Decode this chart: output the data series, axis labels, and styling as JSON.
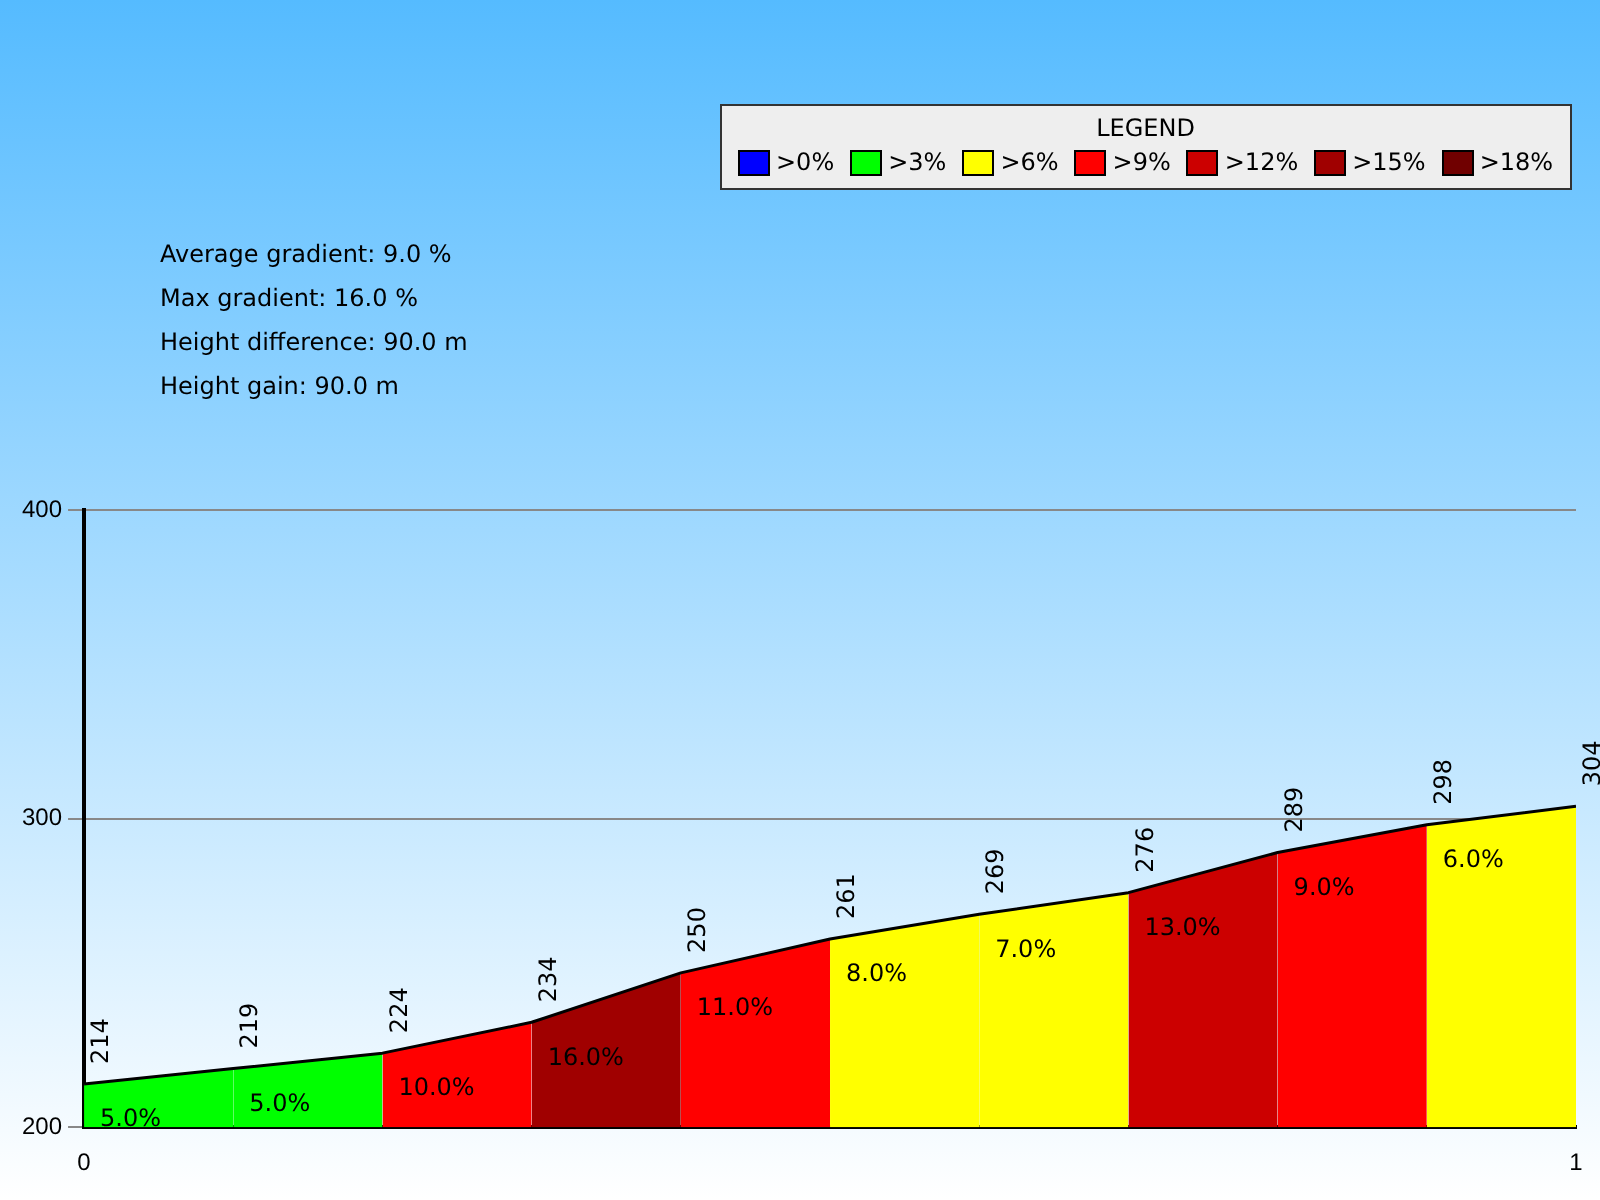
{
  "chart_data": [
    {
      "type": "area",
      "x": [
        0,
        0.1,
        0.2,
        0.3,
        0.4,
        0.5,
        0.6,
        0.7,
        0.8,
        0.9,
        1
      ],
      "series": [
        {
          "type": "line",
          "color": "#000000",
          "values": [
            214,
            219,
            224,
            234,
            250,
            261,
            269,
            276,
            289,
            298,
            304
          ],
          "value_labels": [
            "214",
            "219",
            "224",
            "234",
            "250",
            "261",
            "269",
            "276",
            "289",
            "298",
            "304"
          ]
        },
        {
          "color": "#00ff00",
          "x": [
            0,
            0.1
          ],
          "values": [
            214,
            219
          ]
        },
        {
          "color": "#00ff00",
          "x": [
            0.1,
            0.2
          ],
          "values": [
            219,
            224
          ]
        },
        {
          "color": "#ff0000",
          "x": [
            0.2,
            0.3
          ],
          "values": [
            224,
            234
          ]
        },
        {
          "color": "#a00000",
          "x": [
            0.3,
            0.4
          ],
          "values": [
            234,
            250
          ]
        },
        {
          "color": "#ff0000",
          "x": [
            0.4,
            0.5
          ],
          "values": [
            250,
            261
          ]
        },
        {
          "color": "#ffff00",
          "x": [
            0.5,
            0.6
          ],
          "values": [
            261,
            269
          ]
        },
        {
          "color": "#ffff00",
          "x": [
            0.6,
            0.7
          ],
          "values": [
            269,
            276
          ]
        },
        {
          "color": "#cc0000",
          "x": [
            0.7,
            0.8
          ],
          "values": [
            276,
            289
          ]
        },
        {
          "color": "#ff0000",
          "x": [
            0.8,
            0.9
          ],
          "values": [
            289,
            298
          ]
        },
        {
          "color": "#ffff00",
          "x": [
            0.9,
            1
          ],
          "values": [
            298,
            304
          ]
        }
      ],
      "xlim": [
        0,
        1
      ],
      "xticks": [
        0,
        1
      ],
      "ylim": [
        200,
        400
      ],
      "yticks": [
        200,
        300,
        400
      ],
      "grid": "y",
      "annotations": [
        "Average gradient: 9.0 %",
        "Max gradient: 16.0 %",
        "Height difference: 90.0 m",
        "Height gain: 90.0 m",
        {
          "text": "5.0%",
          "x": 0,
          "y": 214
        },
        {
          "text": "5.0%",
          "x": 0.1,
          "y": 219
        },
        {
          "text": "10.0%",
          "x": 0.2,
          "y": 224
        },
        {
          "text": "16.0%",
          "x": 0.3,
          "y": 234
        },
        {
          "text": "11.0%",
          "x": 0.4,
          "y": 250
        },
        {
          "text": "8.0%",
          "x": 0.5,
          "y": 261
        },
        {
          "text": "7.0%",
          "x": 0.6,
          "y": 269
        },
        {
          "text": "13.0%",
          "x": 0.7,
          "y": 276
        },
        {
          "text": "9.0%",
          "x": 0.8,
          "y": 289
        },
        {
          "text": "6.0%",
          "x": 0.9,
          "y": 298
        }
      ]
    },
    {
      "type": "other",
      "title": "LEGEND",
      "categories": [
        ">0%",
        ">3%",
        ">6%",
        ">9%",
        ">12%",
        ">15%",
        ">18%"
      ],
      "colors": [
        "#0000ff",
        "#00ff00",
        "#ffff00",
        "#ff0000",
        "#cc0000",
        "#a00000",
        "#700000"
      ]
    }
  ]
}
